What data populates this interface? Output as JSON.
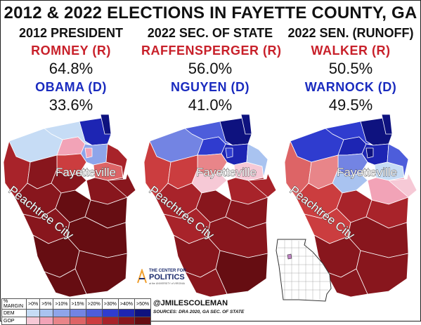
{
  "title": "2012 & 2022 ELECTIONS IN FAYETTE COUNTY, GA",
  "columns": [
    {
      "heading": "2012 PRESIDENT",
      "rep_name": "ROMNEY (R)",
      "rep_pct": "64.8%",
      "dem_name": "OBAMA (D)",
      "dem_pct": "33.6%"
    },
    {
      "heading": "2022 SEC. OF STATE",
      "rep_name": "RAFFENSPERGER (R)",
      "rep_pct": "56.0%",
      "dem_name": "NGUYEN (D)",
      "dem_pct": "41.0%"
    },
    {
      "heading": "2022 SEN. (RUNOFF)",
      "rep_name": "WALKER (R)",
      "rep_pct": "50.5%",
      "dem_name": "WARNOCK (D)",
      "dem_pct": "49.5%"
    }
  ],
  "map_labels": {
    "city_1": "Fayetteville",
    "city_2": "Peachtree City"
  },
  "legend": {
    "header": "% MARGIN",
    "thresholds": [
      ">0%",
      ">5%",
      ">10%",
      ">15%",
      ">20%",
      ">30%",
      ">40%",
      ">50%"
    ],
    "dem_label": "DEM",
    "gop_label": "GOP",
    "dem_colors": [
      "#c6dcf5",
      "#a9c3f0",
      "#8ea5ea",
      "#7384e3",
      "#4d5ddb",
      "#2f3ccf",
      "#1d25b3",
      "#0e127f"
    ],
    "gop_colors": [
      "#f6c9d6",
      "#f2a3b7",
      "#e88589",
      "#dd6466",
      "#cb3d3f",
      "#a8232a",
      "#88161d",
      "#660d12"
    ]
  },
  "logo": {
    "line1": "THE CENTER FOR",
    "line2": "POLITICS",
    "line3": "at the UNIVERSITY of VIRGINIA"
  },
  "credit": {
    "handle": "@JMILESCOLEMAN",
    "sources": "SOURCES: DRA 2020, GA SEC. OF STATE"
  },
  "colors": {
    "rep": "#c8202a",
    "dem": "#1a2bbf"
  }
}
